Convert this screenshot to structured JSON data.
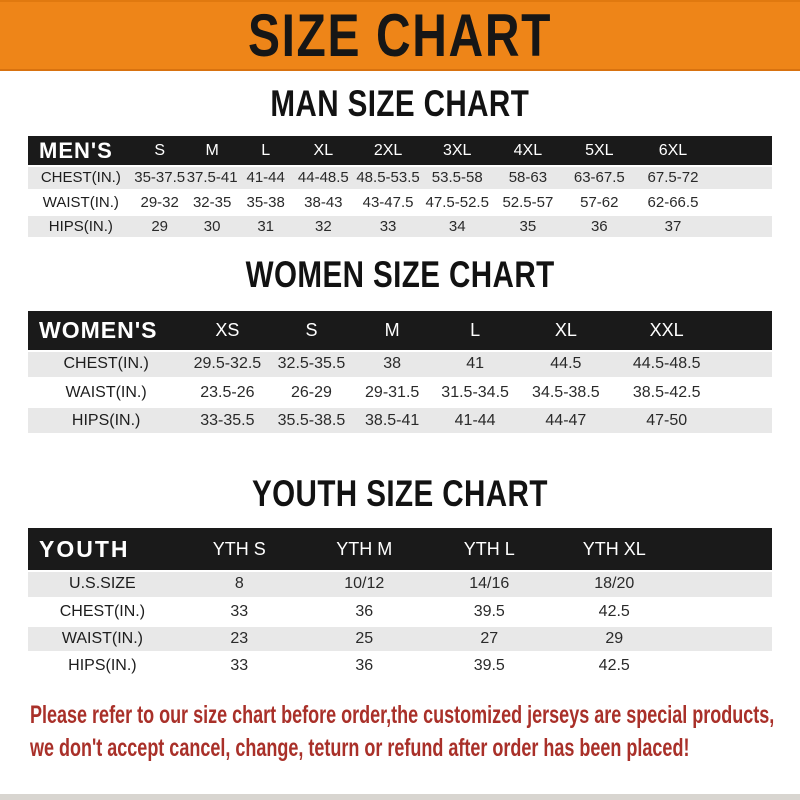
{
  "banner": {
    "title": "SIZE CHART",
    "bg_color": "#EE8518",
    "text_color": "#161616"
  },
  "colors": {
    "header_bar": "#1a1a1a",
    "row_shade": "#e8e8e8",
    "footer_red": "#A93029"
  },
  "sections": {
    "men": {
      "heading": "MAN SIZE CHART",
      "table": {
        "label": "MEN'S",
        "columns": [
          "S",
          "M",
          "L",
          "XL",
          "2XL",
          "3XL",
          "4XL",
          "5XL",
          "6XL"
        ],
        "rows": [
          {
            "label": "CHEST(IN.)",
            "values": [
              "35-37.5",
              "37.5-41",
              "41-44",
              "44-48.5",
              "48.5-53.5",
              "53.5-58",
              "58-63",
              "63-67.5",
              "67.5-72"
            ]
          },
          {
            "label": "WAIST(IN.)",
            "values": [
              "29-32",
              "32-35",
              "35-38",
              "38-43",
              "43-47.5",
              "47.5-52.5",
              "52.5-57",
              "57-62",
              "62-66.5"
            ]
          },
          {
            "label": "HIPS(IN.)",
            "values": [
              "29",
              "30",
              "31",
              "32",
              "33",
              "34",
              "35",
              "36",
              "37"
            ]
          }
        ]
      }
    },
    "women": {
      "heading": "WOMEN SIZE CHART",
      "table": {
        "label": "WOMEN'S",
        "columns": [
          "XS",
          "S",
          "M",
          "L",
          "XL",
          "XXL"
        ],
        "rows": [
          {
            "label": "CHEST(IN.)",
            "values": [
              "29.5-32.5",
              "32.5-35.5",
              "38",
              "41",
              "44.5",
              "44.5-48.5"
            ]
          },
          {
            "label": "WAIST(IN.)",
            "values": [
              "23.5-26",
              "26-29",
              "29-31.5",
              "31.5-34.5",
              "34.5-38.5",
              "38.5-42.5"
            ]
          },
          {
            "label": "HIPS(IN.)",
            "values": [
              "33-35.5",
              "35.5-38.5",
              "38.5-41",
              "41-44",
              "44-47",
              "47-50"
            ]
          }
        ]
      }
    },
    "youth": {
      "heading": "YOUTH SIZE CHART",
      "table": {
        "label": "YOUTH",
        "columns": [
          "YTH S",
          "YTH M",
          "YTH L",
          "YTH XL"
        ],
        "rows": [
          {
            "label": "U.S.SIZE",
            "values": [
              "8",
              "10/12",
              "14/16",
              "18/20"
            ]
          },
          {
            "label": "CHEST(IN.)",
            "values": [
              "33",
              "36",
              "39.5",
              "42.5"
            ]
          },
          {
            "label": "WAIST(IN.)",
            "values": [
              "23",
              "25",
              "27",
              "29"
            ]
          },
          {
            "label": "HIPS(IN.)",
            "values": [
              "33",
              "36",
              "39.5",
              "42.5"
            ]
          }
        ]
      }
    }
  },
  "footer": {
    "line1": "Please refer to our size chart before order,the customized jerseys are special products,",
    "line2": "we don't accept cancel, change, teturn or refund after order has been placed!"
  }
}
